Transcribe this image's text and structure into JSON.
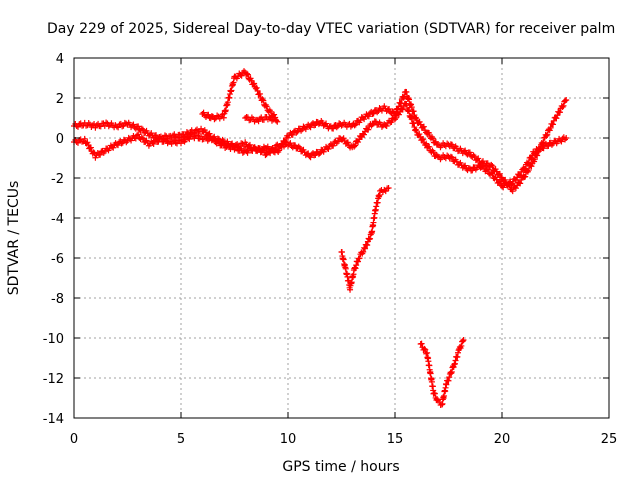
{
  "chart_data": {
    "type": "scatter",
    "title": "Day 229 of 2025, Sidereal Day-to-day VTEC variation (SDTVAR) for receiver palm",
    "xlabel": "GPS time / hours",
    "ylabel": "SDTVAR / TECUs",
    "xlim": [
      0,
      25
    ],
    "ylim": [
      -14,
      4
    ],
    "xticks": [
      0,
      5,
      10,
      15,
      20,
      25
    ],
    "yticks": [
      4,
      2,
      0,
      -2,
      -4,
      -6,
      -8,
      -10,
      -12,
      -14
    ],
    "grid": true,
    "marker": "+",
    "color": "#ff0000",
    "series": [
      {
        "name": "main-trace-a",
        "points": [
          [
            0.0,
            0.6
          ],
          [
            0.5,
            0.7
          ],
          [
            1.0,
            0.6
          ],
          [
            1.5,
            0.7
          ],
          [
            2.0,
            0.6
          ],
          [
            2.5,
            0.7
          ],
          [
            3.0,
            0.5
          ],
          [
            3.5,
            0.2
          ],
          [
            4.0,
            0.0
          ],
          [
            4.5,
            0.1
          ],
          [
            5.0,
            0.1
          ],
          [
            5.5,
            0.3
          ],
          [
            6.0,
            0.4
          ],
          [
            6.5,
            0.0
          ],
          [
            7.0,
            -0.2
          ],
          [
            7.5,
            -0.4
          ],
          [
            8.0,
            -0.3
          ],
          [
            8.5,
            -0.6
          ],
          [
            9.0,
            -0.5
          ],
          [
            9.5,
            -0.7
          ],
          [
            10.0,
            0.1
          ],
          [
            10.5,
            0.4
          ],
          [
            11.0,
            0.6
          ],
          [
            11.5,
            0.8
          ],
          [
            12.0,
            0.5
          ],
          [
            12.5,
            0.7
          ],
          [
            13.0,
            0.6
          ],
          [
            13.5,
            1.0
          ],
          [
            14.0,
            1.3
          ],
          [
            14.5,
            1.5
          ],
          [
            15.0,
            1.2
          ],
          [
            15.5,
            2.3
          ],
          [
            16.0,
            0.9
          ],
          [
            16.5,
            0.3
          ],
          [
            17.0,
            -0.4
          ],
          [
            17.5,
            -0.3
          ],
          [
            18.0,
            -0.6
          ],
          [
            18.5,
            -0.8
          ],
          [
            19.0,
            -1.2
          ],
          [
            19.5,
            -1.4
          ],
          [
            20.0,
            -2.0
          ],
          [
            20.5,
            -2.6
          ],
          [
            21.0,
            -2.0
          ],
          [
            21.5,
            -1.1
          ],
          [
            22.0,
            0.0
          ],
          [
            22.5,
            1.0
          ],
          [
            23.0,
            1.9
          ]
        ]
      },
      {
        "name": "main-trace-b",
        "points": [
          [
            0.0,
            -0.2
          ],
          [
            0.5,
            -0.1
          ],
          [
            1.0,
            -0.9
          ],
          [
            1.5,
            -0.6
          ],
          [
            2.0,
            -0.3
          ],
          [
            2.5,
            -0.1
          ],
          [
            3.0,
            0.1
          ],
          [
            3.5,
            -0.3
          ],
          [
            4.0,
            -0.1
          ],
          [
            4.5,
            -0.2
          ],
          [
            5.0,
            -0.2
          ],
          [
            5.5,
            0.1
          ],
          [
            6.0,
            0.0
          ],
          [
            6.5,
            -0.1
          ],
          [
            7.0,
            -0.4
          ],
          [
            7.5,
            -0.5
          ],
          [
            8.0,
            -0.7
          ],
          [
            8.5,
            -0.5
          ],
          [
            9.0,
            -0.8
          ],
          [
            9.5,
            -0.4
          ],
          [
            10.0,
            -0.3
          ],
          [
            10.5,
            -0.5
          ],
          [
            11.0,
            -0.9
          ],
          [
            11.5,
            -0.7
          ],
          [
            12.0,
            -0.4
          ],
          [
            12.5,
            0.0
          ],
          [
            13.0,
            -0.5
          ],
          [
            13.5,
            0.2
          ],
          [
            14.0,
            0.8
          ],
          [
            14.5,
            0.6
          ],
          [
            15.0,
            1.0
          ],
          [
            15.5,
            1.7
          ],
          [
            16.0,
            0.3
          ],
          [
            16.5,
            -0.4
          ],
          [
            17.0,
            -1.0
          ],
          [
            17.5,
            -0.9
          ],
          [
            18.0,
            -1.3
          ],
          [
            18.5,
            -1.6
          ],
          [
            19.0,
            -1.4
          ],
          [
            19.5,
            -1.8
          ],
          [
            20.0,
            -2.4
          ],
          [
            20.5,
            -2.2
          ],
          [
            21.0,
            -1.6
          ],
          [
            21.5,
            -0.7
          ],
          [
            22.0,
            -0.4
          ],
          [
            22.5,
            -0.2
          ],
          [
            23.0,
            0.0
          ]
        ]
      },
      {
        "name": "excursion-peak",
        "points": [
          [
            6.0,
            1.2
          ],
          [
            6.5,
            1.0
          ],
          [
            7.0,
            1.1
          ],
          [
            7.5,
            3.0
          ],
          [
            8.0,
            3.3
          ],
          [
            8.5,
            2.5
          ],
          [
            9.0,
            1.5
          ],
          [
            9.5,
            0.9
          ],
          [
            9.0,
            1.0
          ],
          [
            8.5,
            0.9
          ],
          [
            8.0,
            1.0
          ]
        ]
      },
      {
        "name": "dip-13h",
        "points": [
          [
            12.5,
            -5.7
          ],
          [
            12.7,
            -6.6
          ],
          [
            12.9,
            -7.5
          ],
          [
            13.1,
            -6.6
          ],
          [
            13.3,
            -6.0
          ],
          [
            13.6,
            -5.5
          ],
          [
            13.9,
            -4.8
          ],
          [
            14.1,
            -3.5
          ],
          [
            14.3,
            -2.7
          ],
          [
            14.5,
            -2.6
          ],
          [
            14.7,
            -2.5
          ]
        ]
      },
      {
        "name": "dip-17h",
        "points": [
          [
            16.2,
            -10.3
          ],
          [
            16.5,
            -10.8
          ],
          [
            16.8,
            -12.7
          ],
          [
            17.0,
            -13.2
          ],
          [
            17.2,
            -13.3
          ],
          [
            17.4,
            -12.3
          ],
          [
            17.6,
            -11.8
          ],
          [
            17.8,
            -11.2
          ],
          [
            18.0,
            -10.6
          ],
          [
            18.2,
            -10.1
          ]
        ]
      }
    ]
  }
}
